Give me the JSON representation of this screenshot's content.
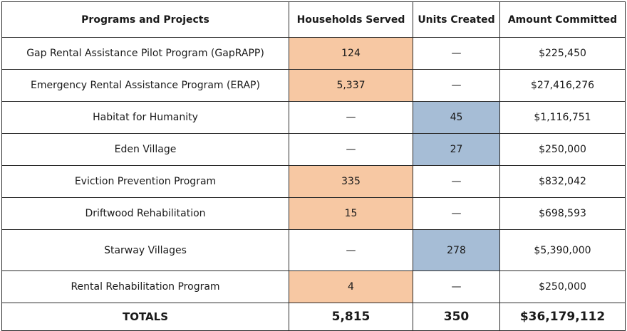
{
  "header": {
    "col1": "Programs and Projects",
    "col2": "Households Served",
    "col3": "Units Created",
    "col4": "Amount Committed"
  },
  "rows": [
    {
      "program": "Gap Rental Assistance Pilot Program (GapRAPP)",
      "households": "124",
      "units": "—",
      "amount": "$225,450"
    },
    {
      "program": "Emergency Rental Assistance Program (ERAP)",
      "households": "5,337",
      "units": "—",
      "amount": "$27,416,276"
    },
    {
      "program": "Habitat for Humanity",
      "households": "—",
      "units": "45",
      "amount": "$1,116,751"
    },
    {
      "program": "Eden Village",
      "households": "—",
      "units": "27",
      "amount": "$250,000"
    },
    {
      "program": "Eviction Prevention Program",
      "households": "335",
      "units": "—",
      "amount": "$832,042"
    },
    {
      "program": "Driftwood Rehabilitation",
      "households": "15",
      "units": "—",
      "amount": "$698,593"
    },
    {
      "program": "Starway Villages",
      "households": "—",
      "units": "278",
      "amount": "$5,390,000"
    },
    {
      "program": "Rental Rehabilitation Program",
      "households": "4",
      "units": "—",
      "amount": "$250,000"
    }
  ],
  "totals": {
    "label": "TOTALS",
    "households": "5,815",
    "units": "350",
    "amount": "$36,179,112"
  },
  "colors": {
    "households_highlight": "#f7c8a3",
    "units_highlight": "#a6bdd6"
  }
}
